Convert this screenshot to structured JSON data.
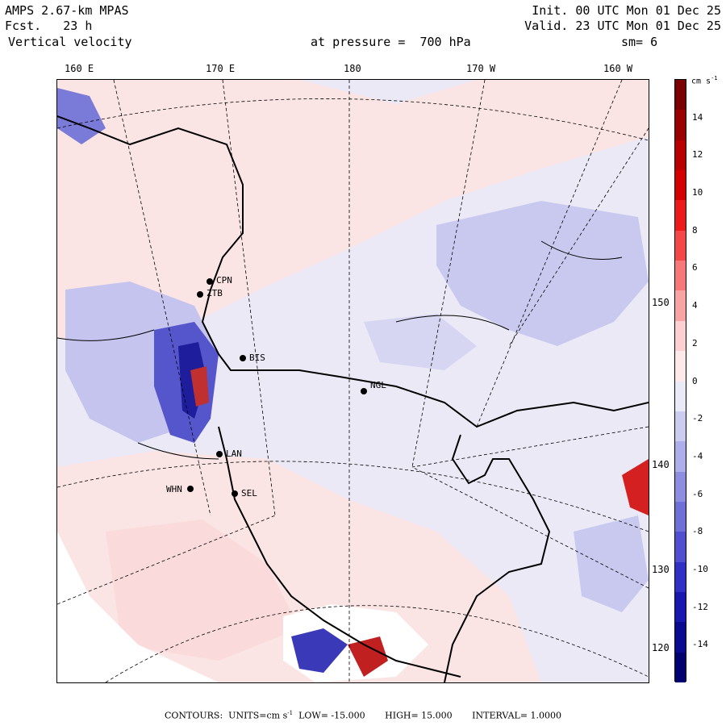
{
  "header": {
    "model": "AMPS 2.67-km MPAS",
    "fcst_label": "Fcst.",
    "fcst_value": "23 h",
    "variable": "Vertical velocity",
    "init": "Init. 00 UTC Mon 01 Dec 25",
    "valid": "Valid. 23 UTC Mon 01 Dec 25",
    "pressure_label": "at pressure =",
    "pressure_value": "700 hPa",
    "smoothing": "sm= 6"
  },
  "longitude_labels": [
    "160 E",
    "170 E",
    "180",
    "170 W",
    "160 W"
  ],
  "latitude_labels": [
    "150 W",
    "140 W",
    "130 W",
    "120 W"
  ],
  "colorbar": {
    "units_label": "cm s",
    "units_exp": "-1",
    "ticks": [
      "14",
      "12",
      "10",
      "8",
      "6",
      "4",
      "2",
      "0",
      "-2",
      "-4",
      "-6",
      "-8",
      "-10",
      "-12",
      "-14"
    ],
    "colors": [
      "#7a0000",
      "#9a0000",
      "#b80000",
      "#d40000",
      "#ec1a1a",
      "#f44848",
      "#f77878",
      "#f9a4a4",
      "#fcd0d0",
      "#fde9e9",
      "#e9e9f8",
      "#ccccf0",
      "#aeaeea",
      "#8e8ee0",
      "#6f6fd8",
      "#4f4fd0",
      "#3030c4",
      "#1818b0",
      "#0a0a90",
      "#000070"
    ]
  },
  "stations": [
    {
      "code": "CPN"
    },
    {
      "code": "ZTB"
    },
    {
      "code": "BIS"
    },
    {
      "code": "NGL"
    },
    {
      "code": "LAN"
    },
    {
      "code": "WHN"
    },
    {
      "code": "SEL"
    }
  ],
  "footer": {
    "contours_label": "CONTOURS:",
    "units_label": "UNITS=cm s",
    "units_exp": "-1",
    "low": "LOW= -15.000",
    "high": "HIGH= 15.000",
    "interval": "INTERVAL= 1.0000"
  }
}
